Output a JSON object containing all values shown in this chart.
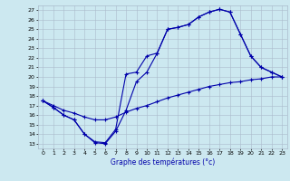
{
  "xlabel": "Graphe des températures (°c)",
  "background_color": "#cce8f0",
  "grid_color": "#aabbcc",
  "line_color": "#0000aa",
  "xlim": [
    -0.5,
    23.5
  ],
  "ylim": [
    12.5,
    27.5
  ],
  "yticks": [
    13,
    14,
    15,
    16,
    17,
    18,
    19,
    20,
    21,
    22,
    23,
    24,
    25,
    26,
    27
  ],
  "xticks": [
    0,
    1,
    2,
    3,
    4,
    5,
    6,
    7,
    8,
    9,
    10,
    11,
    12,
    13,
    14,
    15,
    16,
    17,
    18,
    19,
    20,
    21,
    22,
    23
  ],
  "line1_x": [
    0,
    1,
    2,
    3,
    4,
    5,
    6,
    7,
    8,
    9,
    10,
    11,
    12,
    13,
    14,
    15,
    16,
    17,
    18,
    19,
    20,
    21,
    22,
    23
  ],
  "line1_y": [
    17.5,
    16.8,
    16.0,
    15.5,
    14.0,
    13.1,
    13.0,
    14.3,
    16.5,
    19.5,
    20.5,
    22.5,
    25.0,
    25.2,
    25.5,
    26.3,
    26.8,
    27.1,
    26.8,
    24.5,
    22.2,
    21.0,
    20.5,
    20.0
  ],
  "line2_x": [
    0,
    1,
    2,
    3,
    4,
    5,
    6,
    7,
    8,
    9,
    10,
    11,
    12,
    13,
    14,
    15,
    16,
    17,
    18,
    19,
    20,
    21,
    22,
    23
  ],
  "line2_y": [
    17.5,
    16.8,
    16.0,
    15.5,
    14.0,
    13.2,
    13.1,
    14.5,
    20.3,
    20.5,
    22.2,
    22.5,
    25.0,
    25.2,
    25.5,
    26.3,
    26.8,
    27.1,
    26.8,
    24.5,
    22.2,
    21.0,
    20.5,
    20.0
  ],
  "line3_x": [
    0,
    1,
    2,
    3,
    4,
    5,
    6,
    7,
    8,
    9,
    10,
    11,
    12,
    13,
    14,
    15,
    16,
    17,
    18,
    19,
    20,
    21,
    22,
    23
  ],
  "line3_y": [
    17.5,
    17.0,
    16.5,
    16.2,
    15.8,
    15.5,
    15.5,
    15.8,
    16.3,
    16.7,
    17.0,
    17.4,
    17.8,
    18.1,
    18.4,
    18.7,
    19.0,
    19.2,
    19.4,
    19.5,
    19.7,
    19.8,
    20.0,
    20.0
  ]
}
